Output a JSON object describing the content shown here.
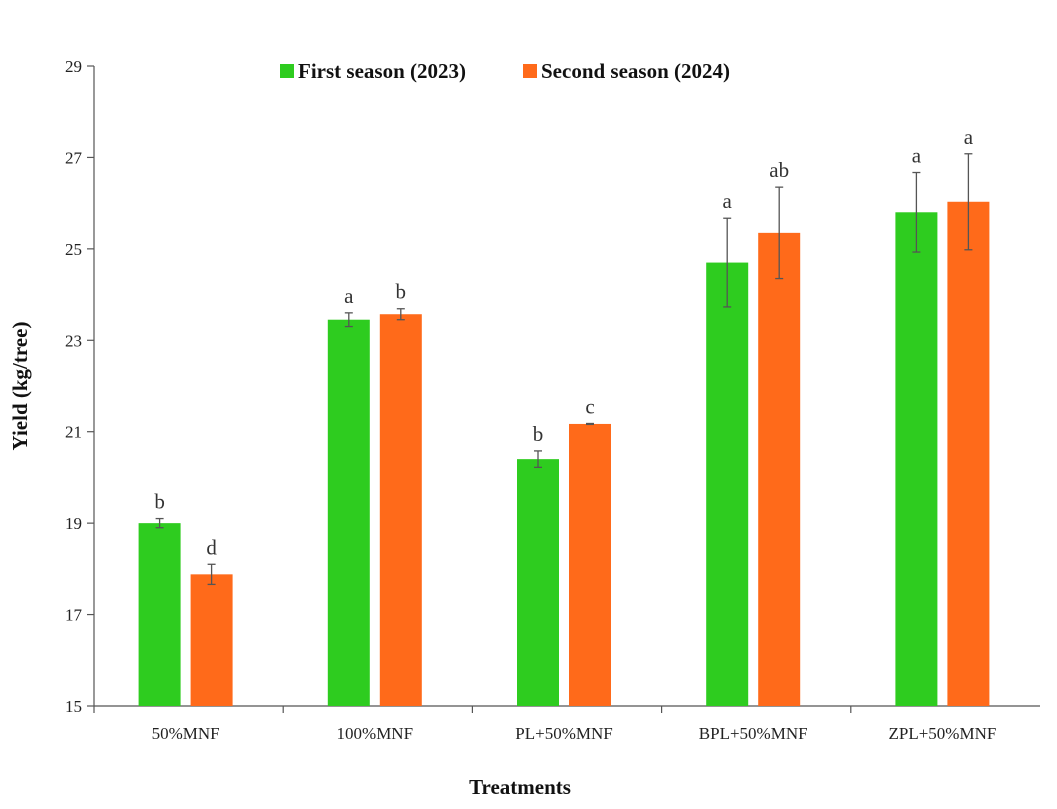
{
  "chart_data": {
    "type": "bar",
    "categories": [
      "50%MNF",
      "100%MNF",
      "PL+50%MNF",
      "BPL+50%MNF",
      "ZPL+50%MNF"
    ],
    "series": [
      {
        "name": "First season (2023)",
        "color": "#2ecc1f",
        "values": [
          19.0,
          23.45,
          20.4,
          24.7,
          25.8
        ],
        "errors": [
          0.1,
          0.15,
          0.18,
          0.97,
          0.87
        ],
        "letters": [
          "b",
          "a",
          "b",
          "a",
          "a"
        ]
      },
      {
        "name": "Second season (2024)",
        "color": "#ff6a1a",
        "values": [
          17.88,
          23.57,
          21.17,
          25.35,
          26.03
        ],
        "errors": [
          0.22,
          0.12,
          0.01,
          1.0,
          1.05
        ],
        "letters": [
          "d",
          "b",
          "c",
          "ab",
          "a"
        ]
      }
    ],
    "ylim": [
      15,
      29
    ],
    "yticks": [
      15,
      17,
      19,
      21,
      23,
      25,
      27,
      29
    ],
    "ylabel": "Yield (kg/tree)",
    "xlabel": "Treatments",
    "legend_position": "top-center",
    "grid": false
  }
}
